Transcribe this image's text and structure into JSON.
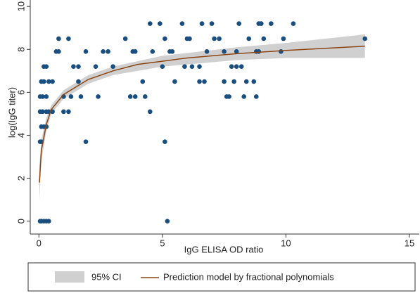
{
  "chart_data": {
    "type": "scatter",
    "xlabel": "IgG ELISA OD ratio",
    "ylabel": "log(IgG titer)",
    "xlim": [
      -0.35,
      15.4
    ],
    "ylim": [
      -0.6,
      10.3
    ],
    "xticks": [
      0,
      5,
      10,
      15
    ],
    "yticks": [
      0,
      2,
      4,
      6,
      8,
      10
    ],
    "grid": false,
    "points": {
      "color": "#1a4e7e",
      "x": [
        0.05,
        0.1,
        0.2,
        0.3,
        0.4,
        0.05,
        0.1,
        0.1,
        0.2,
        0.3,
        0.05,
        0.15,
        0.3,
        0.4,
        0.05,
        0.15,
        0.3,
        0.1,
        0.2,
        0.4,
        0.2,
        0.3,
        0.55,
        0.55,
        0.7,
        0.8,
        0.8,
        1.0,
        1.0,
        1.2,
        1.2,
        1.3,
        1.4,
        1.6,
        1.6,
        1.7,
        1.9,
        1.9,
        2.3,
        2.4,
        2.6,
        2.8,
        3.0,
        3.5,
        3.7,
        3.8,
        3.9,
        3.9,
        4.2,
        4.3,
        4.5,
        4.5,
        4.6,
        4.9,
        5.0,
        5.1,
        5.1,
        5.2,
        5.3,
        5.4,
        5.5,
        5.8,
        5.9,
        6.0,
        6.1,
        6.2,
        6.5,
        6.5,
        6.6,
        6.7,
        6.8,
        7.0,
        7.1,
        7.3,
        7.5,
        7.5,
        7.6,
        7.7,
        7.8,
        7.9,
        8.0,
        8.0,
        8.1,
        8.2,
        8.3,
        8.4,
        8.5,
        8.7,
        8.8,
        8.8,
        8.9,
        8.9,
        9.0,
        9.1,
        9.4,
        9.8,
        9.9,
        10.3,
        13.2
      ],
      "y": [
        0,
        0,
        0,
        0,
        0,
        3.7,
        3.7,
        4.4,
        4.4,
        4.4,
        5.1,
        5.1,
        5.1,
        5.1,
        5.8,
        5.8,
        5.8,
        6.5,
        6.5,
        6.5,
        7.2,
        7.2,
        6.5,
        5.1,
        7.9,
        7.9,
        8.5,
        5.8,
        5.1,
        8.5,
        5.1,
        5.8,
        7.2,
        7.2,
        6.5,
        5.8,
        3.7,
        7.9,
        7.2,
        5.8,
        7.9,
        7.9,
        7.2,
        8.5,
        5.8,
        7.9,
        7.9,
        5.8,
        6.5,
        5.8,
        9.2,
        5.1,
        7.9,
        9.2,
        7.2,
        8.5,
        3.7,
        0,
        7.9,
        7.9,
        6.5,
        9.2,
        7.2,
        8.5,
        8.5,
        7.2,
        6.5,
        7.2,
        9.2,
        6.5,
        7.9,
        9.2,
        8.5,
        8.5,
        7.9,
        6.5,
        5.8,
        5.8,
        7.2,
        6.5,
        7.9,
        7.2,
        9.2,
        7.2,
        5.8,
        6.5,
        8.5,
        6.5,
        5.8,
        7.9,
        9.2,
        7.9,
        9.2,
        8.5,
        9.2,
        7.9,
        8.5,
        9.2,
        8.5
      ]
    },
    "fit": {
      "name": "Prediction model by fractional polynomials",
      "color": "#8b4513",
      "x": [
        0.02,
        0.1,
        0.3,
        0.5,
        1,
        2,
        3,
        4,
        5,
        6,
        8,
        10,
        13.2
      ],
      "y": [
        1.8,
        3.3,
        4.5,
        5.2,
        5.9,
        6.6,
        7.0,
        7.3,
        7.45,
        7.6,
        7.8,
        7.95,
        8.15
      ]
    },
    "ci": {
      "name": "95% CI",
      "color": "#d0d0d0",
      "x": [
        0.02,
        0.1,
        0.3,
        0.5,
        1,
        2,
        3,
        5,
        8,
        10,
        13.2
      ],
      "lower": [
        1.0,
        2.8,
        4.2,
        5.0,
        5.7,
        6.4,
        6.8,
        7.2,
        7.5,
        7.6,
        7.6
      ],
      "upper": [
        2.6,
        3.8,
        4.8,
        5.4,
        6.1,
        6.8,
        7.2,
        7.7,
        8.1,
        8.3,
        8.7
      ]
    }
  }
}
